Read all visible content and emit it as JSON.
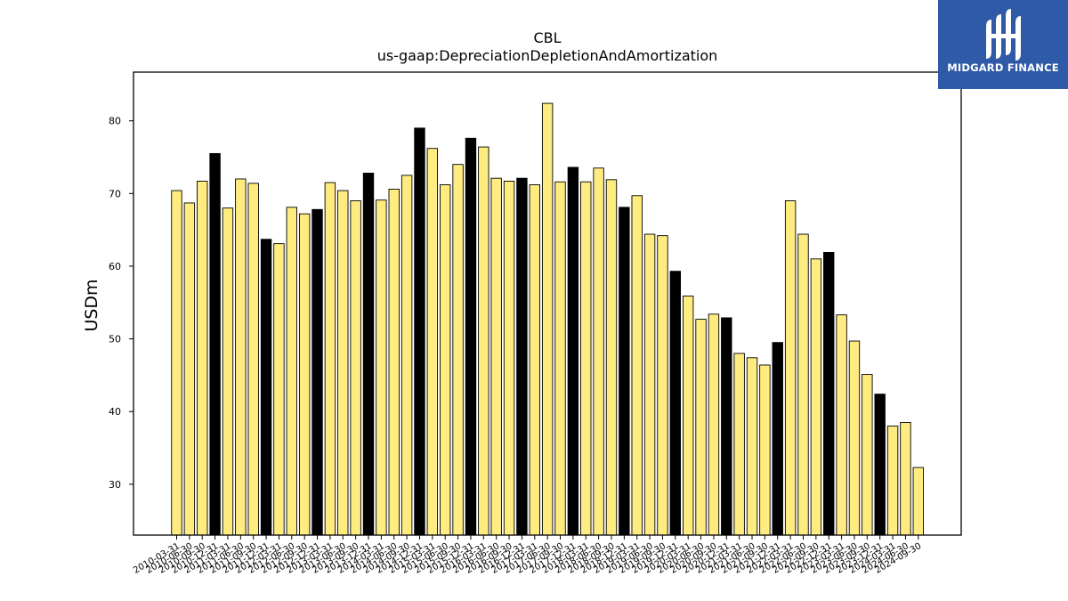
{
  "logo": {
    "text": "MIDGARD FINANCE"
  },
  "chart_data": {
    "type": "bar",
    "title": "CBL",
    "subtitle": "us-gaap:DepreciationDepletionAndAmortization",
    "xlabel": "",
    "ylabel": "USDm",
    "ylim": [
      23,
      86.7
    ],
    "yticks": [
      30,
      40,
      50,
      60,
      70,
      80
    ],
    "grid": false,
    "colors": {
      "quarter": "#ffec80",
      "year_end": "#000000",
      "edge": "#000000"
    },
    "categories": [
      "2010-03-31",
      "2010-06-30",
      "2010-09-30",
      "2010-12-31",
      "2011-03-31",
      "2011-06-30",
      "2011-09-30",
      "2011-12-31",
      "2012-03-31",
      "2012-06-30",
      "2012-09-30",
      "2012-12-31",
      "2013-03-31",
      "2013-06-30",
      "2013-09-30",
      "2013-12-31",
      "2014-03-31",
      "2014-06-30",
      "2014-09-30",
      "2014-12-31",
      "2015-03-31",
      "2015-06-30",
      "2015-09-30",
      "2015-12-31",
      "2016-03-31",
      "2016-06-30",
      "2016-09-30",
      "2016-12-31",
      "2017-03-31",
      "2017-06-30",
      "2017-09-30",
      "2017-12-31",
      "2018-03-31",
      "2018-06-30",
      "2018-09-30",
      "2018-12-31",
      "2019-03-31",
      "2019-06-30",
      "2019-09-30",
      "2019-12-31",
      "2020-03-31",
      "2020-06-30",
      "2020-09-30",
      "2020-12-31",
      "2021-03-31",
      "2021-06-30",
      "2021-09-30",
      "2021-12-31",
      "2022-03-31",
      "2022-06-30",
      "2022-09-30",
      "2022-12-31",
      "2023-03-31",
      "2023-06-30",
      "2023-09-30",
      "2023-12-31",
      "2024-03-31",
      "2024-06-30",
      "2024-09-30"
    ],
    "values": [
      70.4,
      68.7,
      71.7,
      75.5,
      68.0,
      72.0,
      71.4,
      63.7,
      63.1,
      68.1,
      67.2,
      67.8,
      71.5,
      70.4,
      69.0,
      72.8,
      69.1,
      70.6,
      72.5,
      79.0,
      76.2,
      71.2,
      74.0,
      77.6,
      76.4,
      72.1,
      71.7,
      72.1,
      71.2,
      82.4,
      71.6,
      73.6,
      71.6,
      73.5,
      71.9,
      68.1,
      69.7,
      64.4,
      64.2,
      59.3,
      55.9,
      52.7,
      53.4,
      52.9,
      48.0,
      47.4,
      46.4,
      49.5,
      69.0,
      64.4,
      61.0,
      61.9,
      53.3,
      49.7,
      45.1,
      42.4,
      38.0,
      38.5,
      32.3
    ],
    "year_end": [
      false,
      false,
      false,
      true,
      false,
      false,
      false,
      true,
      false,
      false,
      false,
      true,
      false,
      false,
      false,
      true,
      false,
      false,
      false,
      true,
      false,
      false,
      false,
      true,
      false,
      false,
      false,
      true,
      false,
      false,
      false,
      true,
      false,
      false,
      false,
      true,
      false,
      false,
      false,
      true,
      false,
      false,
      false,
      true,
      false,
      false,
      false,
      true,
      false,
      false,
      false,
      true,
      false,
      false,
      false,
      true,
      false,
      false,
      false
    ]
  }
}
